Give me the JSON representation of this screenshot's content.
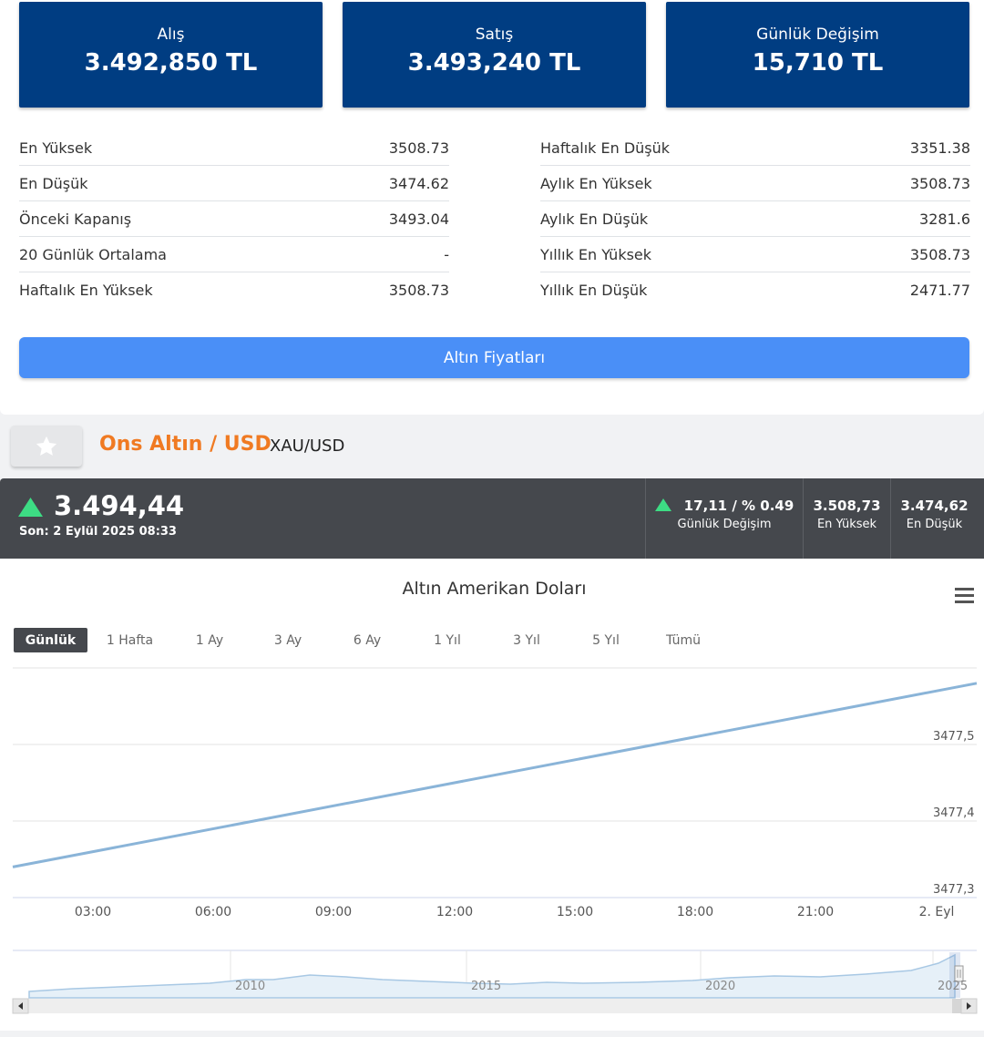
{
  "price_boxes": [
    {
      "label": "Alış",
      "value": "3.492,850 TL"
    },
    {
      "label": "Satış",
      "value": "3.493,240 TL"
    },
    {
      "label": "Günlük Değişim",
      "value": "15,710 TL"
    }
  ],
  "stats_left": [
    {
      "label": "En Yüksek",
      "value": "3508.73"
    },
    {
      "label": "En Düşük",
      "value": "3474.62"
    },
    {
      "label": "Önceki Kapanış",
      "value": "3493.04"
    },
    {
      "label": "20 Günlük Ortalama",
      "value": "-"
    },
    {
      "label": "Haftalık En Yüksek",
      "value": "3508.73"
    }
  ],
  "stats_right": [
    {
      "label": "Haftalık En Düşük",
      "value": "3351.38"
    },
    {
      "label": "Aylık En Yüksek",
      "value": "3508.73"
    },
    {
      "label": "Aylık En Düşük",
      "value": "3281.6"
    },
    {
      "label": "Yıllık En Yüksek",
      "value": "3508.73"
    },
    {
      "label": "Yıllık En Düşük",
      "value": "2471.77"
    }
  ],
  "gold_prices_button": "Altın Fiyatları",
  "asset": {
    "title": "Ons Altın / USD",
    "code": "XAU/USD"
  },
  "quote": {
    "price": "3.494,44",
    "last_update": "Son: 2 Eylül 2025 08:33",
    "daily_change": {
      "value": "17,11 / % 0.49",
      "label": "Günlük Değişim"
    },
    "high": {
      "value": "3.508,73",
      "label": "En Yüksek"
    },
    "low": {
      "value": "3.474,62",
      "label": "En Düşük"
    },
    "up_color": "#3ddc84"
  },
  "chart_data": {
    "type": "line",
    "title": "Altın Amerikan Doları",
    "range_options": [
      "Günlük",
      "1 Hafta",
      "1 Ay",
      "3 Ay",
      "6 Ay",
      "1 Yıl",
      "3 Yıl",
      "5 Yıl",
      "Tümü"
    ],
    "selected_range": "Günlük",
    "x_ticks": [
      "03:00",
      "06:00",
      "09:00",
      "12:00",
      "15:00",
      "18:00",
      "21:00",
      "2. Eyl"
    ],
    "y_ticks": [
      "3477,5",
      "3477,4",
      "3477,3"
    ],
    "ylim": [
      3477.3,
      3477.59
    ],
    "series": [
      {
        "x": [
          "01:00",
          "24:00"
        ],
        "values": [
          3477.34,
          3477.58
        ]
      }
    ],
    "line_color": "#8ab4d8",
    "grid": true,
    "navigator": {
      "year_labels": [
        "2010",
        "2015",
        "2020",
        "2025"
      ]
    }
  }
}
